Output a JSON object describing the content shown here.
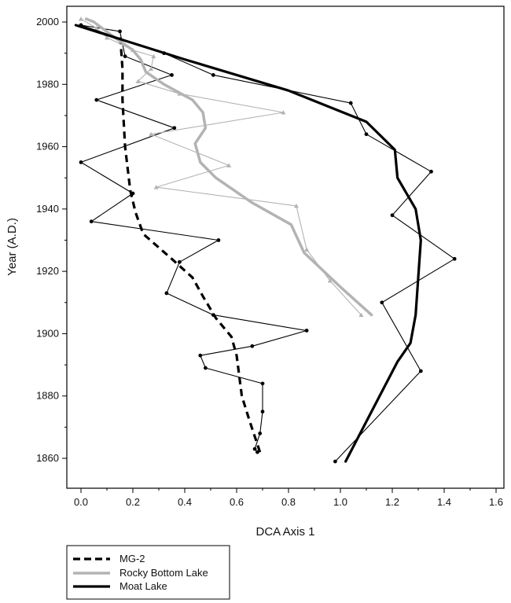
{
  "chart_data": {
    "type": "line",
    "xlabel": "DCA Axis 1",
    "ylabel": "Year (A.D.)",
    "xlim": [
      -0.05,
      1.6
    ],
    "ylim": [
      1850,
      2005
    ],
    "x_ticks": [
      "0.0",
      "0.2",
      "0.4",
      "0.6",
      "0.8",
      "1.0",
      "1.2",
      "1.4",
      "1.6"
    ],
    "y_ticks": [
      "1860",
      "1880",
      "1900",
      "1920",
      "1940",
      "1960",
      "1980",
      "2000"
    ],
    "grid": false,
    "legend_position": "bottom-left",
    "legend": [
      "MG-2",
      "Rocky Bottom Lake",
      "Moat Lake"
    ],
    "series": [
      {
        "name": "MG-2",
        "style": "dashed",
        "color": "#000000",
        "raw": [
          {
            "x": 0.68,
            "y": 1862
          },
          {
            "x": 0.67,
            "y": 1863
          },
          {
            "x": 0.69,
            "y": 1868
          },
          {
            "x": 0.7,
            "y": 1875
          },
          {
            "x": 0.7,
            "y": 1884
          },
          {
            "x": 0.48,
            "y": 1889
          },
          {
            "x": 0.46,
            "y": 1893
          },
          {
            "x": 0.66,
            "y": 1896
          },
          {
            "x": 0.87,
            "y": 1901
          },
          {
            "x": 0.51,
            "y": 1906
          },
          {
            "x": 0.33,
            "y": 1913
          },
          {
            "x": 0.38,
            "y": 1923
          },
          {
            "x": 0.53,
            "y": 1930
          },
          {
            "x": 0.04,
            "y": 1936
          },
          {
            "x": 0.2,
            "y": 1945
          },
          {
            "x": 0.0,
            "y": 1955
          },
          {
            "x": 0.36,
            "y": 1966
          },
          {
            "x": 0.06,
            "y": 1975
          },
          {
            "x": 0.35,
            "y": 1983
          },
          {
            "x": 0.17,
            "y": 1989
          },
          {
            "x": 0.15,
            "y": 1997
          },
          {
            "x": 0.0,
            "y": 1999
          }
        ],
        "smooth": [
          {
            "x": 0.69,
            "y": 1862
          },
          {
            "x": 0.65,
            "y": 1872
          },
          {
            "x": 0.62,
            "y": 1880
          },
          {
            "x": 0.6,
            "y": 1893
          },
          {
            "x": 0.58,
            "y": 1899
          },
          {
            "x": 0.52,
            "y": 1905
          },
          {
            "x": 0.47,
            "y": 1912
          },
          {
            "x": 0.43,
            "y": 1918
          },
          {
            "x": 0.35,
            "y": 1924
          },
          {
            "x": 0.24,
            "y": 1932
          },
          {
            "x": 0.21,
            "y": 1939
          },
          {
            "x": 0.19,
            "y": 1946
          },
          {
            "x": 0.17,
            "y": 1960
          },
          {
            "x": 0.16,
            "y": 1975
          },
          {
            "x": 0.16,
            "y": 1985
          },
          {
            "x": 0.15,
            "y": 1997
          }
        ]
      },
      {
        "name": "Rocky Bottom Lake",
        "style": "solid",
        "color": "#b3b3b3",
        "raw": [
          {
            "x": 1.08,
            "y": 1906
          },
          {
            "x": 0.96,
            "y": 1917
          },
          {
            "x": 0.87,
            "y": 1927
          },
          {
            "x": 0.83,
            "y": 1941
          },
          {
            "x": 0.29,
            "y": 1947
          },
          {
            "x": 0.57,
            "y": 1954
          },
          {
            "x": 0.27,
            "y": 1964
          },
          {
            "x": 0.78,
            "y": 1971
          },
          {
            "x": 0.38,
            "y": 1977
          },
          {
            "x": 0.22,
            "y": 1981
          },
          {
            "x": 0.27,
            "y": 1985
          },
          {
            "x": 0.28,
            "y": 1989
          },
          {
            "x": 0.2,
            "y": 1991
          },
          {
            "x": 0.1,
            "y": 1995
          },
          {
            "x": 0.06,
            "y": 1998
          },
          {
            "x": 0.0,
            "y": 2001
          }
        ],
        "smooth": [
          {
            "x": 1.12,
            "y": 1906
          },
          {
            "x": 1.0,
            "y": 1915
          },
          {
            "x": 0.86,
            "y": 1926
          },
          {
            "x": 0.81,
            "y": 1935
          },
          {
            "x": 0.66,
            "y": 1942
          },
          {
            "x": 0.52,
            "y": 1950
          },
          {
            "x": 0.46,
            "y": 1955
          },
          {
            "x": 0.44,
            "y": 1961
          },
          {
            "x": 0.48,
            "y": 1966
          },
          {
            "x": 0.47,
            "y": 1971
          },
          {
            "x": 0.43,
            "y": 1975
          },
          {
            "x": 0.32,
            "y": 1980
          },
          {
            "x": 0.25,
            "y": 1984
          },
          {
            "x": 0.23,
            "y": 1988
          },
          {
            "x": 0.2,
            "y": 1991
          },
          {
            "x": 0.13,
            "y": 1995
          },
          {
            "x": 0.05,
            "y": 2000
          },
          {
            "x": 0.02,
            "y": 2001
          }
        ]
      },
      {
        "name": "Moat Lake",
        "style": "solid",
        "color": "#000000",
        "raw": [
          {
            "x": 0.98,
            "y": 1859
          },
          {
            "x": 1.31,
            "y": 1888
          },
          {
            "x": 1.16,
            "y": 1910
          },
          {
            "x": 1.44,
            "y": 1924
          },
          {
            "x": 1.2,
            "y": 1938
          },
          {
            "x": 1.35,
            "y": 1952
          },
          {
            "x": 1.1,
            "y": 1964
          },
          {
            "x": 1.04,
            "y": 1974
          },
          {
            "x": 0.51,
            "y": 1983
          },
          {
            "x": 0.32,
            "y": 1990
          },
          {
            "x": 0.0,
            "y": 1999
          }
        ],
        "smooth": [
          {
            "x": 1.02,
            "y": 1859
          },
          {
            "x": 1.12,
            "y": 1875
          },
          {
            "x": 1.22,
            "y": 1891
          },
          {
            "x": 1.27,
            "y": 1897
          },
          {
            "x": 1.29,
            "y": 1906
          },
          {
            "x": 1.3,
            "y": 1918
          },
          {
            "x": 1.31,
            "y": 1930
          },
          {
            "x": 1.29,
            "y": 1940
          },
          {
            "x": 1.22,
            "y": 1950
          },
          {
            "x": 1.21,
            "y": 1959
          },
          {
            "x": 1.1,
            "y": 1968
          },
          {
            "x": 0.8,
            "y": 1978
          },
          {
            "x": 0.4,
            "y": 1988
          },
          {
            "x": -0.02,
            "y": 1999
          }
        ]
      }
    ]
  }
}
